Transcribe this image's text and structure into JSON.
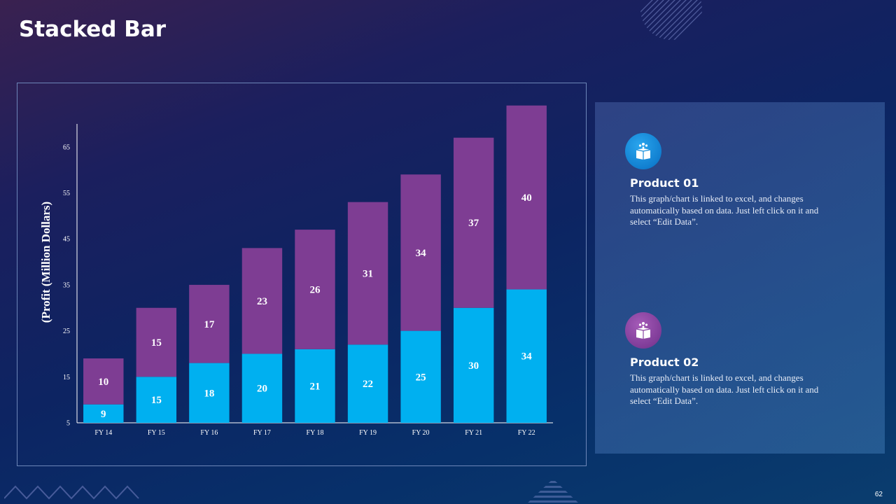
{
  "slide": {
    "title": "Stacked Bar",
    "page_number": "62"
  },
  "chart_data": {
    "type": "bar",
    "stacked": true,
    "categories": [
      "FY 14",
      "FY 15",
      "FY 16",
      "FY 17",
      "FY 18",
      "FY 19",
      "FY 20",
      "FY 21",
      "FY 22"
    ],
    "series": [
      {
        "name": "Product 01",
        "values": [
          9,
          15,
          18,
          20,
          21,
          22,
          25,
          30,
          34
        ],
        "color": "#00b0f0"
      },
      {
        "name": "Product 02",
        "values": [
          10,
          15,
          17,
          23,
          26,
          31,
          34,
          37,
          40
        ],
        "color": "#7e3d93"
      }
    ],
    "ylabel": "(Profit  (Million Dollars)",
    "xlabel": "",
    "ylim": [
      5,
      70
    ],
    "yticks": [
      5,
      15,
      25,
      35,
      45,
      55,
      65
    ],
    "grid": false
  },
  "products": [
    {
      "title": "Product 01",
      "description": "This graph/chart is linked to excel, and changes automatically based on data. Just left click on it and select “Edit Data”.",
      "icon": "gift-box-icon",
      "color": "#1690dd"
    },
    {
      "title": "Product 02",
      "description": "This graph/chart is linked to excel, and changes automatically based on data. Just left click on it and select “Edit Data”.",
      "icon": "gift-box-icon",
      "color": "#8a45a4"
    }
  ]
}
